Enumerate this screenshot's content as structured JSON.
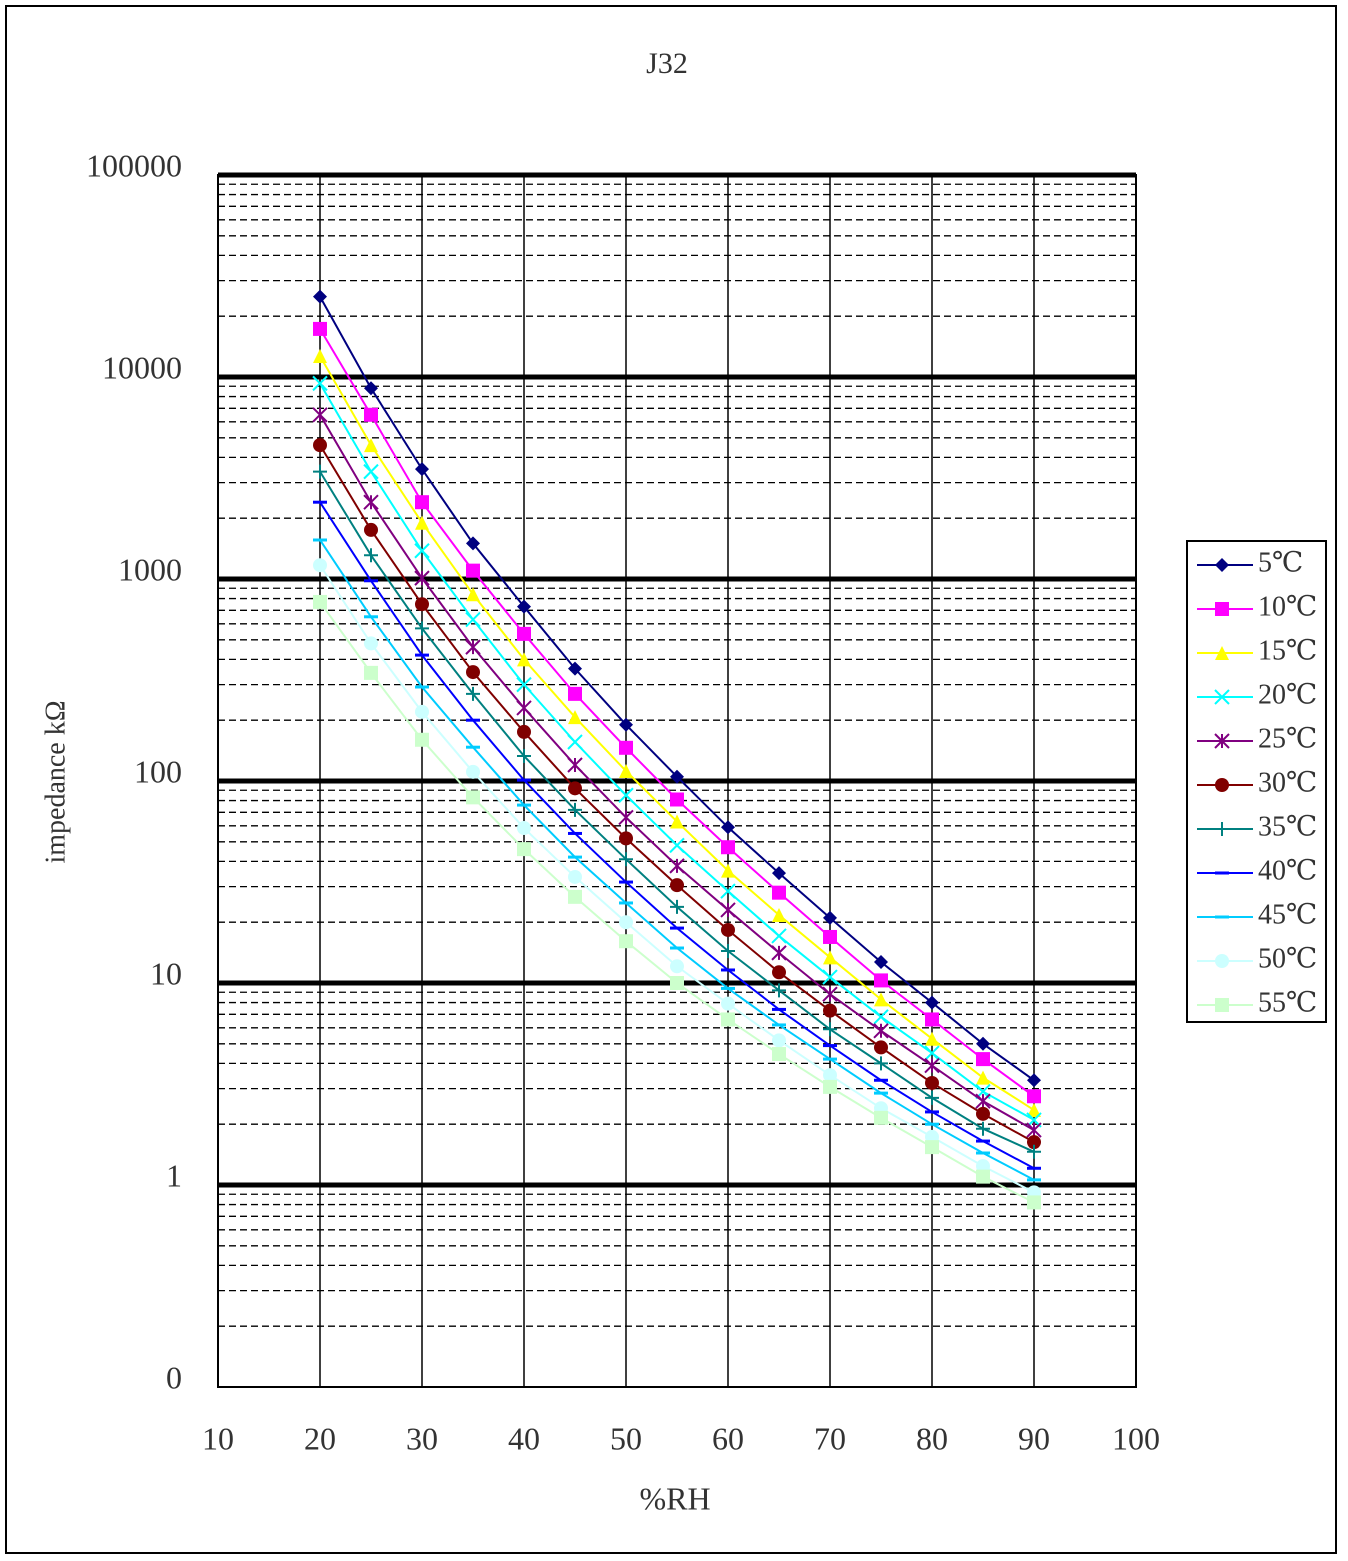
{
  "chart_data": {
    "type": "line",
    "title": "J32",
    "x_label": "%RH",
    "y_label": "impedance kΩ",
    "x": [
      20,
      25,
      30,
      35,
      40,
      45,
      50,
      55,
      60,
      65,
      70,
      75,
      80,
      85,
      90
    ],
    "xlim": [
      10,
      100
    ],
    "xticks": [
      10,
      20,
      30,
      40,
      50,
      60,
      70,
      80,
      90,
      100
    ],
    "ylim": [
      0.1,
      100000
    ],
    "ylog": true,
    "yticks": [
      {
        "value": 0.1,
        "label": "0"
      },
      1,
      10,
      100,
      1000,
      10000,
      100000
    ],
    "grid": true,
    "legend": "right",
    "series": [
      {
        "name": "5℃",
        "color": "#000080",
        "marker": "diamond",
        "values": [
          25000,
          8800,
          3500,
          1500,
          730,
          360,
          190,
          105,
          59,
          35,
          21,
          12.7,
          8.0,
          5.0,
          3.3
        ]
      },
      {
        "name": "10℃",
        "color": "#ff00ff",
        "marker": "square",
        "values": [
          17300,
          6500,
          2400,
          1100,
          535,
          270,
          146,
          81,
          47,
          28,
          16.9,
          10.3,
          6.6,
          4.2,
          2.75
        ]
      },
      {
        "name": "15℃",
        "color": "#ffff00",
        "marker": "triangle",
        "values": [
          12700,
          4600,
          1900,
          840,
          400,
          207,
          112,
          63,
          36,
          21.7,
          13.4,
          8.3,
          5.3,
          3.4,
          2.35
        ]
      },
      {
        "name": "20℃",
        "color": "#00ffff",
        "marker": "x",
        "values": [
          9300,
          3400,
          1380,
          630,
          300,
          156,
          85,
          48,
          28.5,
          17.1,
          10.7,
          6.8,
          4.5,
          2.9,
          2.1
        ]
      },
      {
        "name": "25℃",
        "color": "#800080",
        "marker": "star",
        "values": [
          6500,
          2400,
          1010,
          460,
          230,
          120,
          66,
          38,
          23,
          14.1,
          8.8,
          5.8,
          3.9,
          2.6,
          1.87
        ]
      },
      {
        "name": "30℃",
        "color": "#800000",
        "marker": "circle",
        "values": [
          4600,
          1750,
          750,
          346,
          175,
          92,
          52,
          30.5,
          18.3,
          11.3,
          7.3,
          4.8,
          3.2,
          2.25,
          1.63
        ]
      },
      {
        "name": "35℃",
        "color": "#008080",
        "marker": "plus",
        "values": [
          3400,
          1310,
          570,
          270,
          133,
          72,
          41,
          23.8,
          14.4,
          9.2,
          5.9,
          4.0,
          2.7,
          1.9,
          1.46
        ]
      },
      {
        "name": "40℃",
        "color": "#0000ff",
        "marker": "dash",
        "values": [
          2400,
          980,
          420,
          200,
          101,
          55,
          31.6,
          18.7,
          11.6,
          7.4,
          4.9,
          3.3,
          2.3,
          1.65,
          1.21
        ]
      },
      {
        "name": "45℃",
        "color": "#00ccff",
        "marker": "dash",
        "values": [
          1560,
          650,
          292,
          147,
          76,
          42,
          24.9,
          14.9,
          9.4,
          6.2,
          4.2,
          2.85,
          2.0,
          1.44,
          1.06
        ]
      },
      {
        "name": "50℃",
        "color": "#ccffff",
        "marker": "circle",
        "values": [
          1170,
          480,
          220,
          111,
          58.5,
          33.5,
          20,
          12.1,
          7.9,
          5.2,
          3.5,
          2.4,
          1.73,
          1.24,
          0.92
        ]
      },
      {
        "name": "55℃",
        "color": "#ccffcc",
        "marker": "square",
        "values": [
          770,
          343,
          160,
          83,
          46,
          26.7,
          16.1,
          10,
          6.6,
          4.45,
          3.06,
          2.15,
          1.54,
          1.1,
          0.82
        ]
      }
    ]
  }
}
